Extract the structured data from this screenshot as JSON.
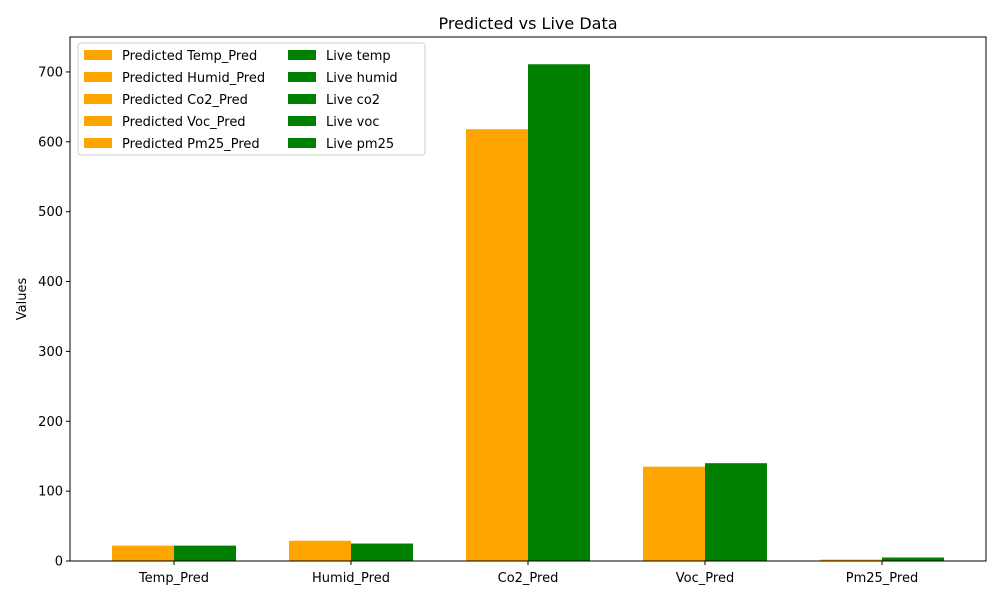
{
  "chart_data": {
    "type": "bar",
    "title": "Predicted vs Live Data",
    "xlabel": "",
    "ylabel": "Values",
    "ylim": [
      0,
      750
    ],
    "yticks": [
      0,
      100,
      200,
      300,
      400,
      500,
      600,
      700
    ],
    "categories": [
      "Temp_Pred",
      "Humid_Pred",
      "Co2_Pred",
      "Voc_Pred",
      "Pm25_Pred"
    ],
    "series": [
      {
        "name": "Predicted",
        "color": "#FFA500",
        "values": [
          22,
          29,
          618,
          135,
          2
        ]
      },
      {
        "name": "Live",
        "color": "#008000",
        "values": [
          22,
          25,
          711,
          140,
          5
        ]
      }
    ],
    "legend": {
      "placement": "top-left",
      "columns": [
        [
          "Predicted Temp_Pred",
          "Predicted Humid_Pred",
          "Predicted Co2_Pred",
          "Predicted Voc_Pred",
          "Predicted Pm25_Pred"
        ],
        [
          "Live temp",
          "Live humid",
          "Live co2",
          "Live voc",
          "Live pm25"
        ]
      ]
    },
    "grid": false
  }
}
